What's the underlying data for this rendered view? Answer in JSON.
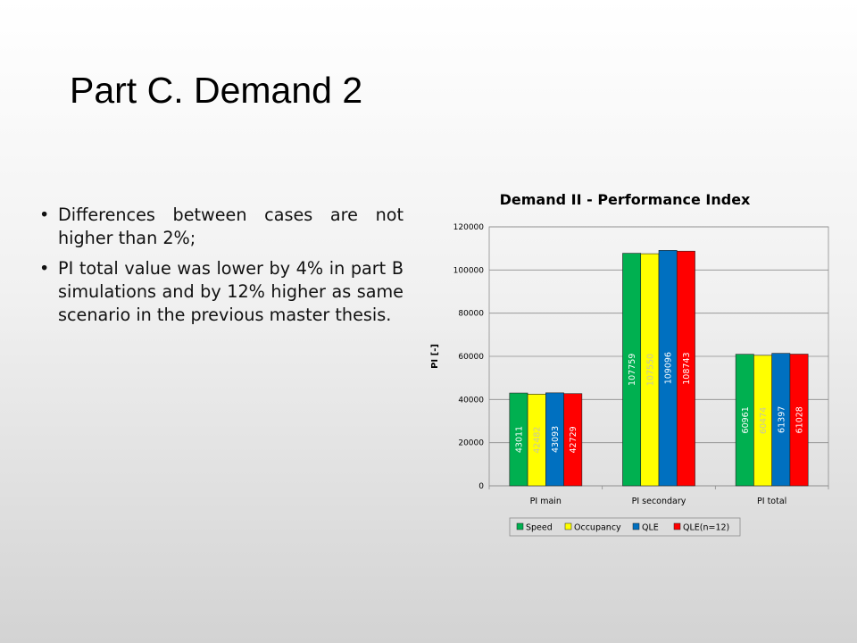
{
  "slide": {
    "title": "Part C. Demand 2",
    "bullets": [
      "Differences between cases are not higher than 2%;",
      "PI total value was lower by 4% in part B simulations  and by 12% higher as same scenario in the previous master thesis."
    ]
  },
  "chart_data": {
    "type": "bar",
    "title": "Demand II - Performance Index",
    "xlabel": "",
    "ylabel": "PI [-]",
    "ylim": [
      0,
      120000
    ],
    "yticks": [
      0,
      20000,
      40000,
      60000,
      80000,
      100000,
      120000
    ],
    "grid": true,
    "legend_position": "bottom",
    "categories": [
      "PI main",
      "PI secondary",
      "PI total"
    ],
    "series": [
      {
        "name": "Speed",
        "color": "#00b050",
        "values": [
          43011,
          107759,
          60961
        ]
      },
      {
        "name": "Occupancy",
        "color": "#ffff00",
        "values": [
          42482,
          107550,
          60474
        ]
      },
      {
        "name": "QLE",
        "color": "#0070c0",
        "values": [
          43093,
          109096,
          61397
        ]
      },
      {
        "name": "QLE(n=12)",
        "color": "#ff0000",
        "values": [
          42729,
          108743,
          61028
        ]
      }
    ]
  }
}
